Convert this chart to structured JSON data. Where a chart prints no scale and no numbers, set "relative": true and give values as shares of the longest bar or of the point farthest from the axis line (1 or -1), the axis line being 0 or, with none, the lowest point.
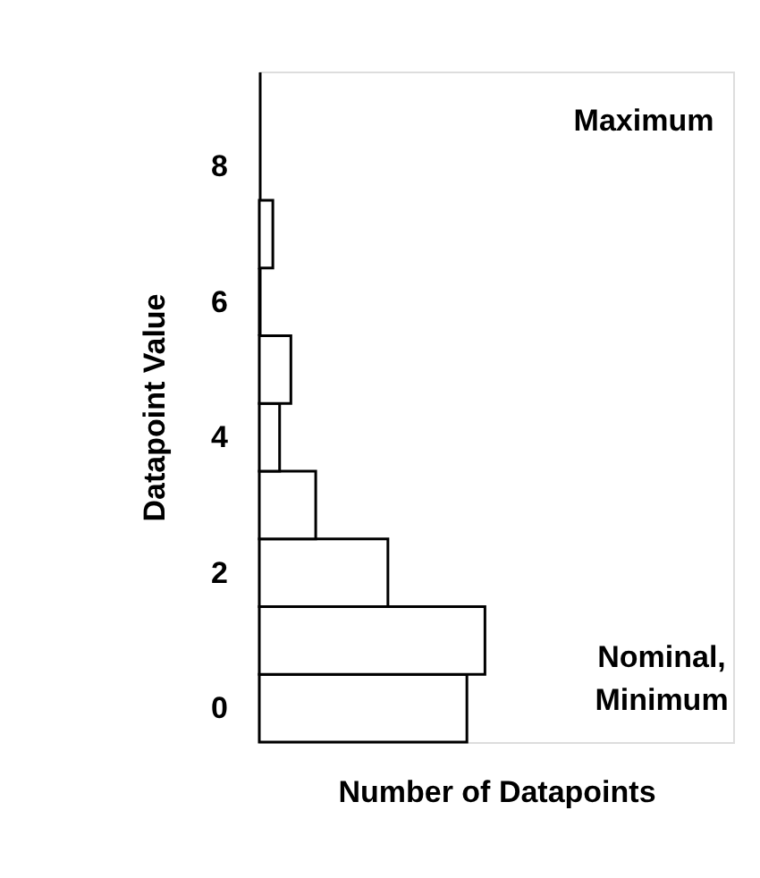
{
  "chart_data": {
    "type": "bar",
    "orientation": "horizontal",
    "relative": true,
    "x": [
      0,
      1,
      2,
      3,
      4,
      5,
      6,
      7
    ],
    "values": [
      0.92,
      1,
      0.57,
      0.25,
      0.09,
      0.14,
      0,
      0.06
    ],
    "color": "#ffffff",
    "ylim": [
      -0.5,
      9.4
    ],
    "yticks": [
      0,
      2,
      4,
      6,
      8
    ],
    "xlabel": "Number of Datapoints",
    "ylabel": "Datapoint Value",
    "tick_labels": "y",
    "grid": false,
    "annotations": [
      "Maximum",
      "Nominal,\nMinimum"
    ]
  }
}
